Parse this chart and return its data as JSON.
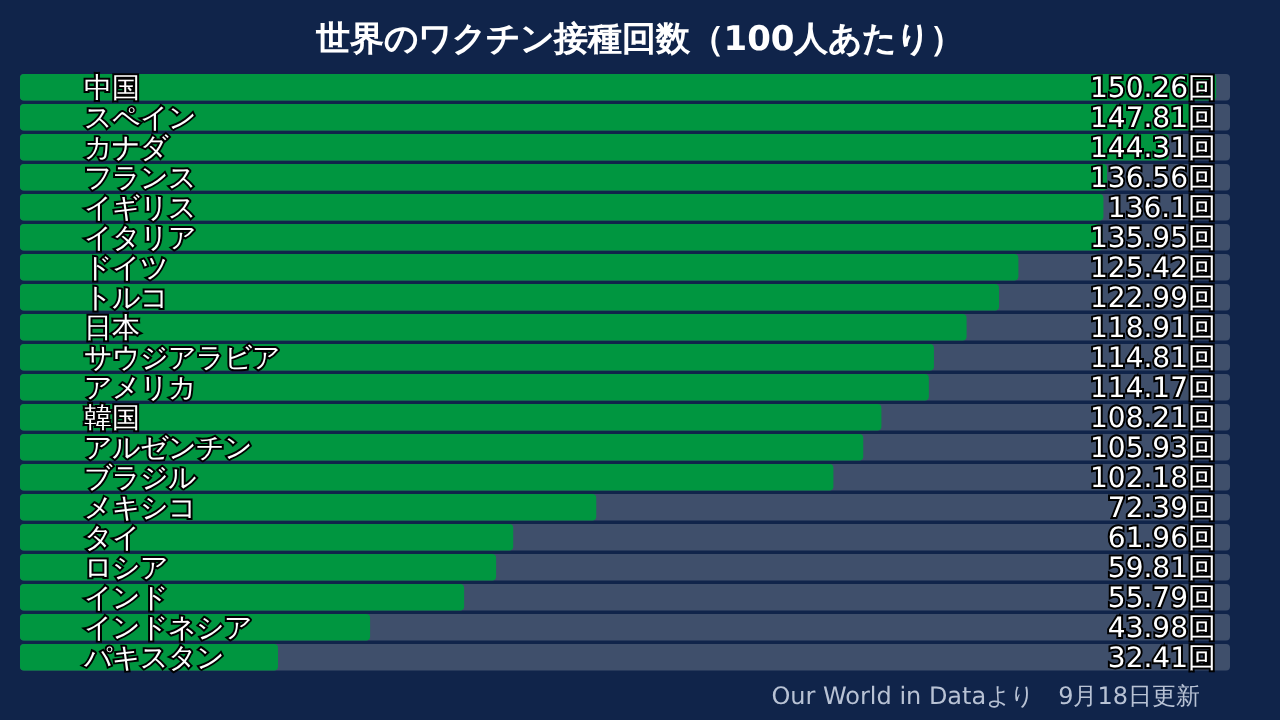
{
  "chart_data": {
    "type": "bar",
    "orientation": "horizontal",
    "title": "世界のワクチン接種回数（100人あたり）",
    "categories": [
      "中国",
      "スペイン",
      "カナダ",
      "フランス",
      "イギリス",
      "イタリア",
      "ドイツ",
      "トルコ",
      "日本",
      "サウジアラビア",
      "アメリカ",
      "韓国",
      "アルゼンチン",
      "ブラジル",
      "メキシコ",
      "タイ",
      "ロシア",
      "インド",
      "インドネシア",
      "パキスタン"
    ],
    "values": [
      150.26,
      147.81,
      144.31,
      136.56,
      136.1,
      135.95,
      125.42,
      122.99,
      118.91,
      114.81,
      114.17,
      108.21,
      105.93,
      102.18,
      72.39,
      61.96,
      59.81,
      55.79,
      43.98,
      32.41
    ],
    "value_labels": [
      "150.26回",
      "147.81回",
      "144.31回",
      "136.56回",
      "136.1回",
      "135.95回",
      "125.42回",
      "122.99回",
      "118.91回",
      "114.81回",
      "114.17回",
      "108.21回",
      "105.93回",
      "102.18回",
      "72.39回",
      "61.96回",
      "59.81回",
      "55.79回",
      "43.98回",
      "32.41回"
    ],
    "color": "#009640",
    "xlim": [
      0,
      152
    ],
    "tick_labels": "y",
    "annotations": [
      "Our World in Dataより　9月18日更新"
    ]
  }
}
